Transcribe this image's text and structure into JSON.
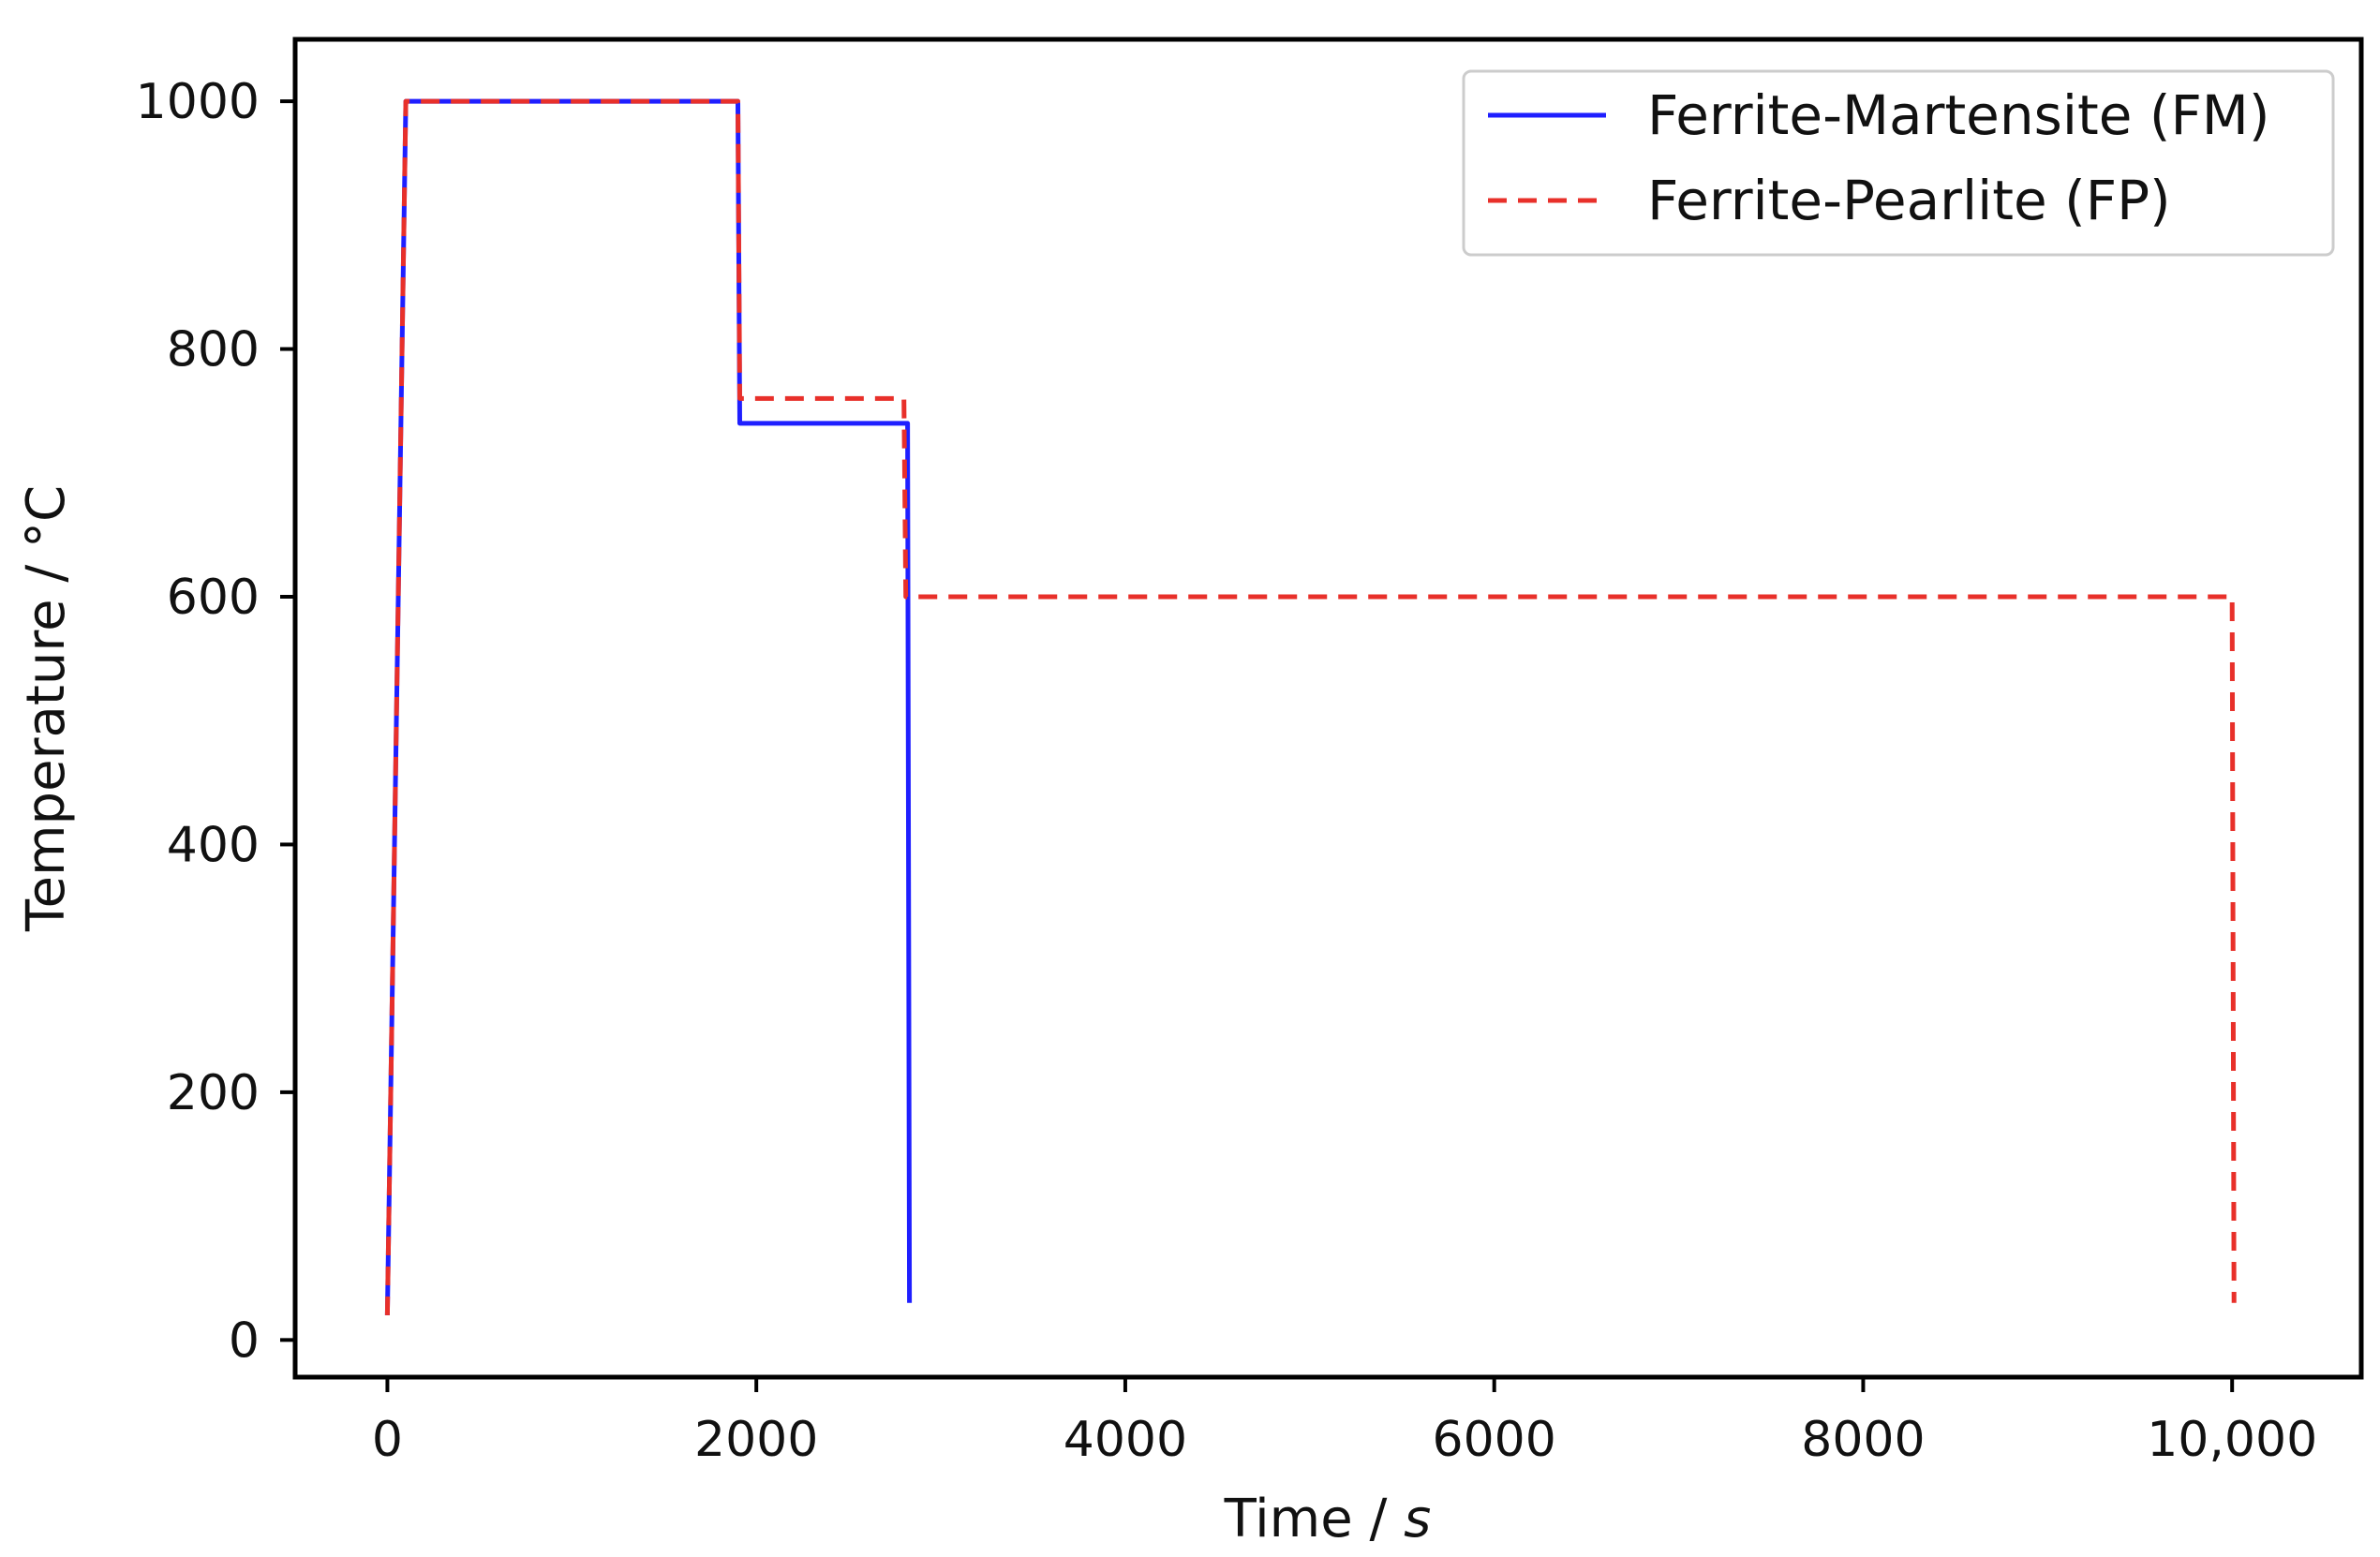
{
  "chart_data": {
    "type": "line",
    "xlabel": "Time / ",
    "xlabel_unit": "s",
    "ylabel": "Temperature / °C",
    "xlim": [
      -500,
      10700
    ],
    "ylim": [
      -30,
      1050
    ],
    "grid": false,
    "legend_position": "top-right",
    "x_ticks": [
      0,
      2000,
      4000,
      6000,
      8000,
      10000
    ],
    "x_tick_labels": [
      "0",
      "2000",
      "4000",
      "6000",
      "8000",
      "10,000"
    ],
    "y_ticks": [
      0,
      200,
      400,
      600,
      800,
      1000
    ],
    "y_tick_labels": [
      "0",
      "200",
      "400",
      "600",
      "800",
      "1000"
    ],
    "series": [
      {
        "name": "Ferrite-Martensite (FM)",
        "color": "#1f1fff",
        "style": "solid",
        "points": [
          [
            0,
            20
          ],
          [
            100,
            1000
          ],
          [
            1900,
            1000
          ],
          [
            1910,
            740
          ],
          [
            2820,
            740
          ],
          [
            2830,
            30
          ]
        ]
      },
      {
        "name": "Ferrite-Pearlite (FP)",
        "color": "#e8302a",
        "style": "dashed",
        "points": [
          [
            0,
            20
          ],
          [
            100,
            1000
          ],
          [
            1900,
            1000
          ],
          [
            1910,
            760
          ],
          [
            2800,
            760
          ],
          [
            2810,
            600
          ],
          [
            10000,
            600
          ],
          [
            10010,
            30
          ]
        ]
      }
    ]
  }
}
